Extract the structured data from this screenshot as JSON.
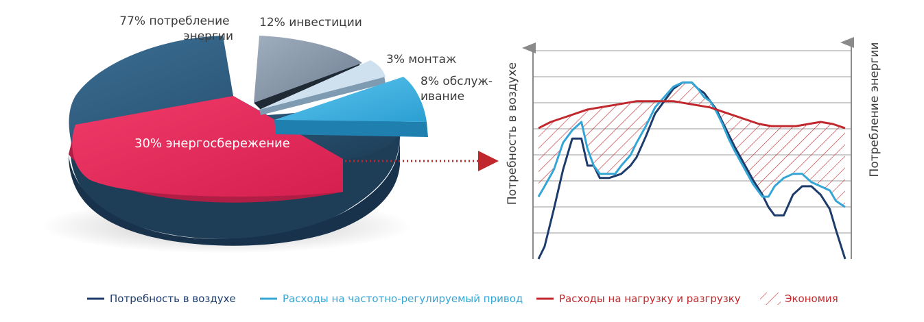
{
  "chart_data": [
    {
      "type": "pie",
      "title": "",
      "style": "3d-exploded",
      "slices": [
        {
          "label": "77% потребление энергии",
          "label_lines": [
            "77% потребление",
            "энергии"
          ],
          "value": 77,
          "color": "#2e5a7c",
          "exploded": false
        },
        {
          "label": "12% инвестиции",
          "label_lines": [
            "12% инвестиции"
          ],
          "value": 12,
          "color": "#8a99aa",
          "exploded": true
        },
        {
          "label": "3% монтаж",
          "label_lines": [
            "3% монтаж"
          ],
          "value": 3,
          "color": "#c9dbea",
          "exploded": true
        },
        {
          "label": "8% обслуж- ивание",
          "label_lines": [
            "8% обслуж-",
            "ивание"
          ],
          "value": 8,
          "color": "#45b3e3",
          "exploded": true
        }
      ],
      "inner_highlight": {
        "label": "30% энергосбережение",
        "value": 30,
        "color": "#e0285a",
        "part_of": "77% потребление энергии"
      }
    },
    {
      "type": "line",
      "title": "",
      "left_axis_label": "Потребность в воздухе",
      "right_axis_label": "Потребление энергии",
      "grid": true,
      "ylim": [
        0,
        10
      ],
      "xlim": [
        0,
        100
      ],
      "series": [
        {
          "name": "Потребность в воздухе",
          "color": "#1d3c6c",
          "x": [
            0,
            2,
            5,
            8,
            11,
            14,
            16,
            18,
            20,
            23,
            25,
            27,
            30,
            32,
            35,
            38,
            41,
            44,
            47,
            50,
            52,
            54,
            56,
            58,
            60,
            62,
            64,
            67,
            70,
            73,
            75,
            77,
            80,
            83,
            86,
            89,
            92,
            95,
            97,
            100
          ],
          "y": [
            0,
            0.6,
            2.4,
            4.3,
            5.8,
            5.8,
            4.5,
            4.5,
            3.9,
            3.9,
            4.0,
            4.1,
            4.5,
            4.9,
            5.9,
            7.0,
            7.6,
            8.2,
            8.5,
            8.5,
            8.2,
            8.0,
            7.6,
            7.2,
            6.6,
            6.0,
            5.4,
            4.6,
            3.8,
            3.1,
            2.5,
            2.1,
            2.1,
            3.1,
            3.5,
            3.5,
            3.1,
            2.4,
            1.4,
            0
          ]
        },
        {
          "name": "Расходы на частотно-регулируемый привод",
          "color": "#34a6d6",
          "x": [
            0,
            2,
            5,
            8,
            11,
            14,
            16,
            18,
            20,
            23,
            25,
            27,
            30,
            32,
            35,
            38,
            41,
            44,
            47,
            50,
            52,
            54,
            56,
            58,
            60,
            62,
            64,
            67,
            70,
            73,
            75,
            77,
            80,
            83,
            86,
            89,
            92,
            95,
            97,
            100
          ],
          "y": [
            3.0,
            3.5,
            4.3,
            5.6,
            6.2,
            6.6,
            5.3,
            4.5,
            4.1,
            4.1,
            4.1,
            4.5,
            5.0,
            5.6,
            6.4,
            7.3,
            7.8,
            8.3,
            8.5,
            8.5,
            8.2,
            7.8,
            7.6,
            7.1,
            6.5,
            5.8,
            5.2,
            4.4,
            3.6,
            3.0,
            3.0,
            3.5,
            3.9,
            4.1,
            4.1,
            3.7,
            3.5,
            3.3,
            2.8,
            2.5
          ]
        },
        {
          "name": "Расходы на нагрузку и разгрузку",
          "color": "#c0282d",
          "x": [
            0,
            4,
            8,
            12,
            16,
            20,
            24,
            28,
            32,
            36,
            40,
            44,
            48,
            52,
            56,
            60,
            64,
            68,
            72,
            76,
            80,
            84,
            88,
            92,
            96,
            100
          ],
          "y": [
            6.3,
            6.6,
            6.8,
            7.0,
            7.2,
            7.3,
            7.4,
            7.5,
            7.6,
            7.6,
            7.6,
            7.6,
            7.5,
            7.4,
            7.3,
            7.1,
            6.9,
            6.7,
            6.5,
            6.4,
            6.4,
            6.4,
            6.5,
            6.6,
            6.5,
            6.3
          ]
        }
      ],
      "legend": {
        "placement": "bottom",
        "items": [
          {
            "label": "Потребность в воздухе",
            "color": "#1d3c6c",
            "style": "line"
          },
          {
            "label": "Расходы на частотно-регулируемый привод",
            "color": "#34a6d6",
            "style": "line"
          },
          {
            "label": "Расходы на нагрузку и разгрузку",
            "color": "#c0282d",
            "style": "line"
          },
          {
            "label": "Экономия",
            "color": "#c0282d",
            "style": "hatch"
          }
        ]
      }
    }
  ]
}
